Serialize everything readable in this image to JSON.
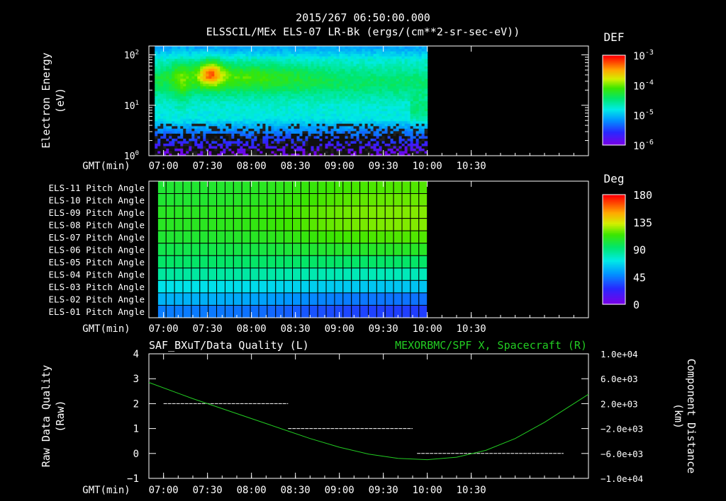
{
  "header": {
    "timestamp": "2015/267 06:50:00.000",
    "subtitle": "ELSSCIL/MEx ELS-07 LR-Bk  (ergs/(cm**2-sr-sec-eV))"
  },
  "time_axis": {
    "label": "GMT(min)",
    "ticks": [
      "07:00",
      "07:30",
      "08:00",
      "08:30",
      "09:00",
      "09:30",
      "10:00",
      "10:30"
    ],
    "start_min": 410,
    "end_min": 710,
    "tick_start_min": 420,
    "tick_step_min": 30,
    "data_end_min": 600
  },
  "colors": {
    "background": "#000000",
    "foreground": "#ffffff",
    "spacecraft_series": "#22cc22"
  },
  "chart_data": [
    {
      "type": "heatmap",
      "name": "electron-spectrogram",
      "ylabel": "Electron Energy",
      "yunit": "(eV)",
      "yscale": "log",
      "ylim": [
        1,
        150
      ],
      "ytick_labels": [
        {
          "base": "10",
          "exp": "0",
          "value": 1
        },
        {
          "base": "10",
          "exp": "1",
          "value": 10
        },
        {
          "base": "10",
          "exp": "2",
          "value": 100
        }
      ],
      "colorbar": {
        "title": "DEF",
        "scale": "log",
        "labels": [
          {
            "base": "10",
            "exp": "-3"
          },
          {
            "base": "10",
            "exp": "-4"
          },
          {
            "base": "10",
            "exp": "-5"
          },
          {
            "base": "10",
            "exp": "-6"
          }
        ]
      },
      "features": {
        "main_band_log_energy": [
          1.1,
          1.8
        ],
        "peak_time_min": 452,
        "peak_log_energy": 1.65,
        "low_energy_dark_below_log": 0.45
      }
    },
    {
      "type": "heatmap",
      "name": "pitch-angle",
      "rows": [
        "ELS-11 Pitch Angle",
        "ELS-10 Pitch Angle",
        "ELS-09 Pitch Angle",
        "ELS-08 Pitch Angle",
        "ELS-07 Pitch Angle",
        "ELS-06 Pitch Angle",
        "ELS-05 Pitch Angle",
        "ELS-04 Pitch Angle",
        "ELS-03 Pitch Angle",
        "ELS-02 Pitch Angle",
        "ELS-01 Pitch Angle"
      ],
      "columns": 32,
      "values_start": [
        105,
        105,
        108,
        108,
        105,
        100,
        95,
        85,
        70,
        58,
        45
      ],
      "values_end": [
        118,
        121,
        124,
        124,
        118,
        108,
        95,
        80,
        62,
        42,
        30
      ],
      "colorbar": {
        "title": "Deg",
        "range": [
          0,
          180
        ],
        "labels": [
          "180",
          "135",
          "90",
          "45",
          "0"
        ]
      }
    },
    {
      "type": "line",
      "name": "data-quality-and-position",
      "left_title": "SAF_BXuT/Data Quality (L)",
      "right_title": "MEXORBMC/SPF X, Spacecraft (R)",
      "ylabel_left": "Raw Data Quality",
      "yunit_left": "(Raw)",
      "ylim_left": [
        -1,
        4
      ],
      "yticks_left": [
        "4",
        "3",
        "2",
        "1",
        "0",
        "−1"
      ],
      "ylabel_right": "Component Distance",
      "yunit_right": "(km)",
      "ylim_right": [
        -10000,
        10000
      ],
      "yticks_right": [
        "1.0e+04",
        "6.0e+03",
        "2.0e+03",
        "−2.0e+03",
        "−6.0e+03",
        "−1.0e+04"
      ],
      "quality_segments": [
        {
          "x0": 420,
          "x1": 505,
          "y": 2
        },
        {
          "x0": 505,
          "x1": 590,
          "y": 1
        },
        {
          "x0": 593,
          "x1": 693,
          "y": 0
        }
      ],
      "spacecraft_x": {
        "x": [
          410,
          440,
          470,
          500,
          520,
          540,
          560,
          580,
          600,
          620,
          640,
          660,
          680,
          700,
          710
        ],
        "values": [
          5400,
          2800,
          400,
          -2000,
          -3600,
          -5000,
          -6100,
          -6800,
          -7000,
          -6600,
          -5500,
          -3600,
          -1000,
          2000,
          3500
        ]
      }
    }
  ]
}
